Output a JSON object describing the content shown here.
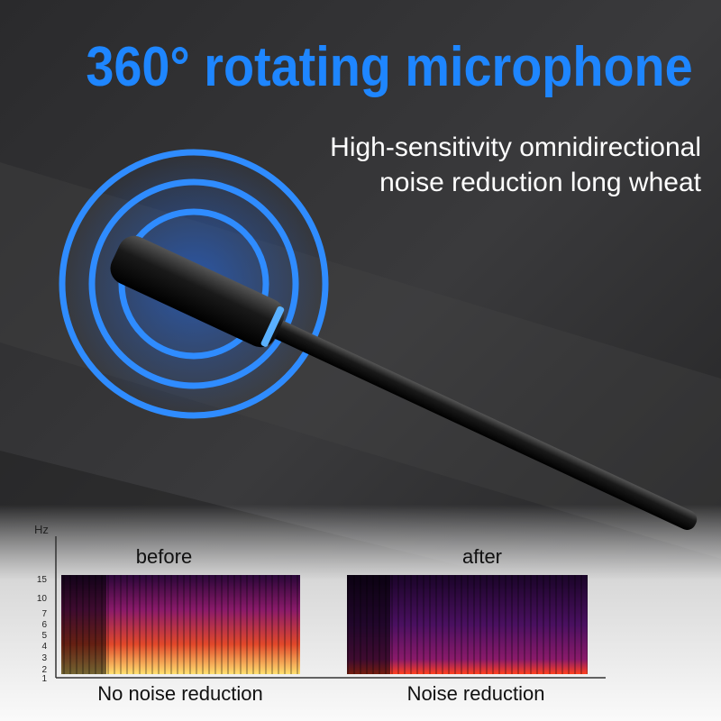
{
  "header": {
    "title": "360° rotating microphone",
    "subtitle_lines": [
      "High-sensitivity omnidirectional",
      "noise reduction long wheat"
    ]
  },
  "spectrogram": {
    "unit": "Hz",
    "ticks": [
      "15",
      "10",
      "7",
      "6",
      "5",
      "4",
      "3",
      "2",
      "1"
    ],
    "panels": [
      {
        "label": "before",
        "caption": "No noise reduction"
      },
      {
        "label": "after",
        "caption": "Noise reduction"
      }
    ]
  }
}
